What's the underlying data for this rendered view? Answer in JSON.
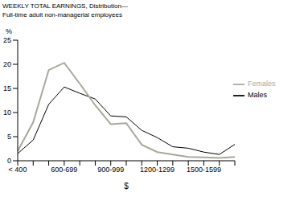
{
  "chart_data": {
    "type": "line",
    "title": "WEEKLY TOTAL EARNINGS, Distribution—",
    "subtitle": "Full-time adult non-managerial employees",
    "x_label": "$",
    "y_label": "%",
    "categories": [
      "< 400",
      null,
      null,
      "600-699",
      null,
      null,
      "900-999",
      null,
      null,
      "1200-1299",
      null,
      null,
      "1500-1599",
      null,
      null
    ],
    "series": [
      {
        "name": "Males",
        "color": "#000000",
        "values": [
          1.5,
          4.3,
          11.7,
          15.3,
          14.0,
          12.8,
          9.3,
          9.1,
          6.3,
          4.8,
          2.9,
          2.6,
          1.8,
          1.3,
          3.4
        ]
      },
      {
        "name": "Females",
        "color": "#a6ab98",
        "values": [
          2.0,
          8.0,
          18.8,
          20.3,
          16.0,
          11.5,
          7.6,
          7.8,
          3.3,
          1.8,
          1.3,
          0.8,
          0.7,
          0.6,
          0.8
        ]
      }
    ],
    "ylim": [
      0,
      25
    ],
    "yticks": [
      0,
      5,
      10,
      15,
      20,
      25
    ],
    "grid": false,
    "legend": "right"
  }
}
